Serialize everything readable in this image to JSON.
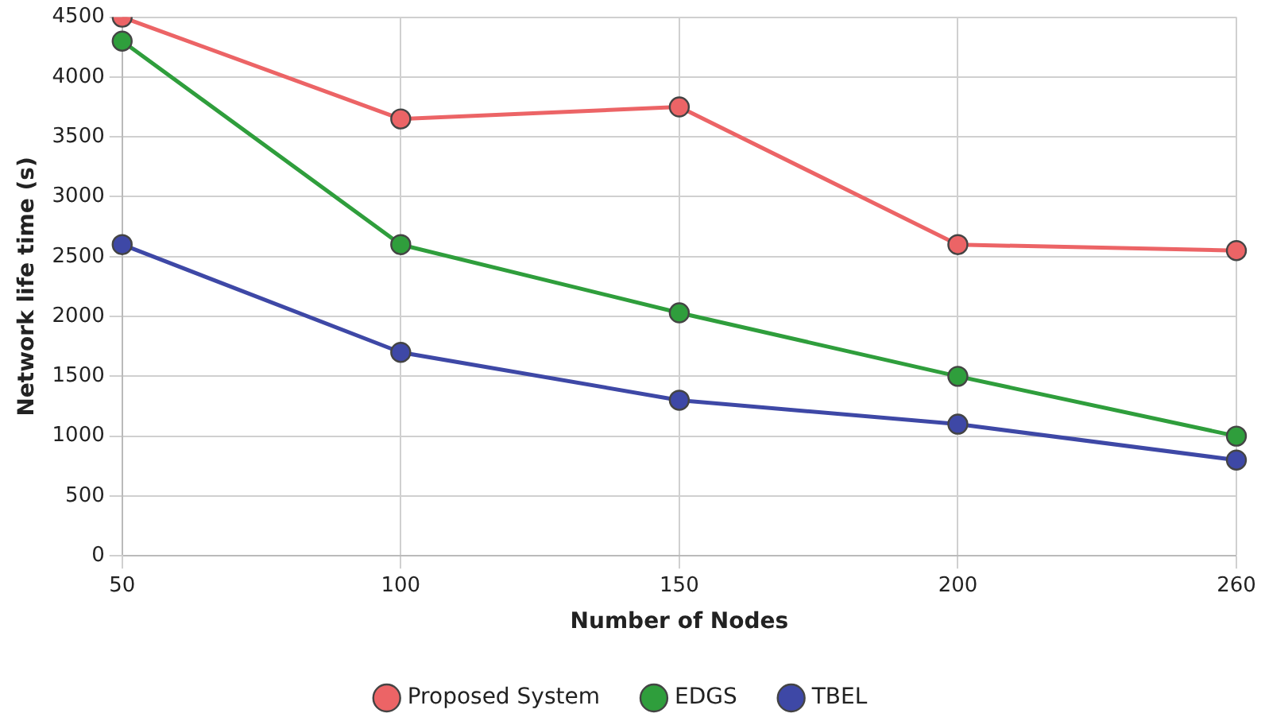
{
  "chart_data": {
    "type": "line",
    "xlabel": "Number of Nodes",
    "ylabel": "Network life time (s)",
    "categories": [
      "50",
      "100",
      "150",
      "200",
      "260"
    ],
    "series": [
      {
        "name": "Proposed System",
        "color": "#ec6466",
        "values": [
          4500,
          3650,
          3750,
          2600,
          2550
        ]
      },
      {
        "name": "EDGS",
        "color": "#2f9e3c",
        "values": [
          4300,
          2600,
          2030,
          1500,
          1000
        ]
      },
      {
        "name": "TBEL",
        "color": "#3e48a6",
        "values": [
          2600,
          1700,
          1300,
          1100,
          800
        ]
      }
    ],
    "ylim": [
      0,
      4500
    ],
    "yticks": [
      0,
      500,
      1000,
      1500,
      2000,
      2500,
      3000,
      3500,
      4000,
      4500
    ],
    "grid": true,
    "legend": "bottom",
    "marker": "circle",
    "line_style": "solid"
  }
}
